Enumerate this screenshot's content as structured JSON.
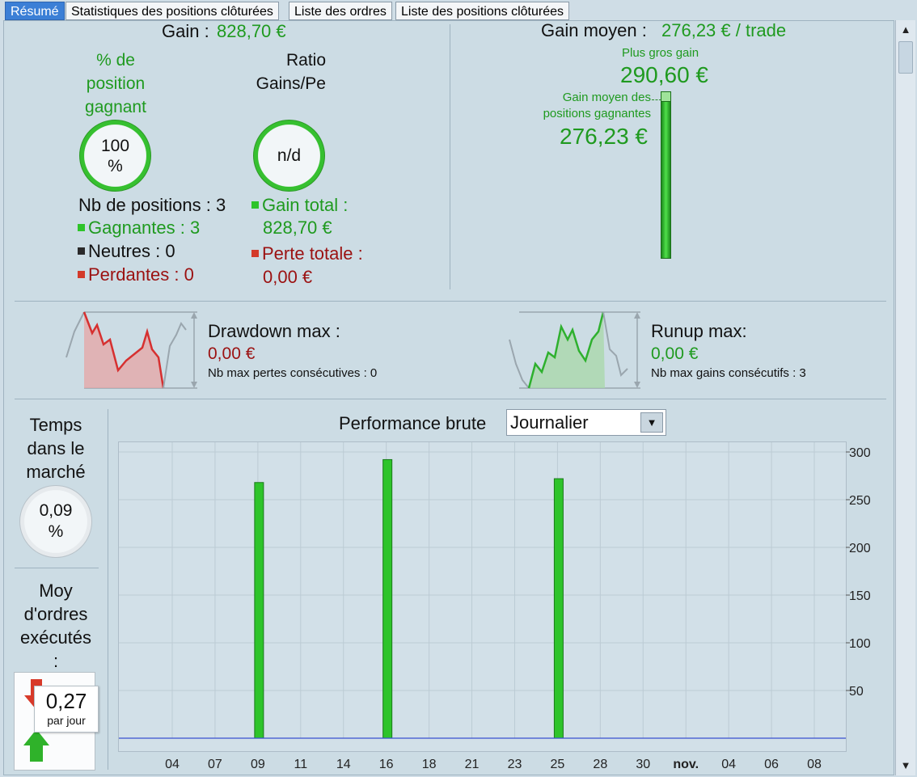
{
  "tabs": [
    {
      "label": "Résumé",
      "active": true
    },
    {
      "label": "Statistiques des positions clôturées",
      "active": false
    },
    {
      "label": "Liste des ordres",
      "active": false
    },
    {
      "label": "Liste des positions clôturées",
      "active": false
    }
  ],
  "gain": {
    "label": "Gain :",
    "value": "828,70 €"
  },
  "win_pct": {
    "title_lines": [
      "% de",
      "position",
      "gagnant"
    ],
    "value_lines": [
      "100",
      "%"
    ]
  },
  "ratio": {
    "title_lines": [
      "Ratio",
      "Gains/Pe"
    ],
    "value": "n/d"
  },
  "positions": {
    "count_label": "Nb de positions : 3",
    "winners": "Gagnantes : 3",
    "neutral": "Neutres : 0",
    "losers": "Perdantes : 0"
  },
  "totals": {
    "gain_label": "Gain total :",
    "gain_value": "828,70 €",
    "loss_label": "Perte totale :",
    "loss_value": "0,00 €"
  },
  "gain_moyen": {
    "label": "Gain moyen :",
    "value": "276,23 € / trade",
    "biggest_label": "Plus gros gain",
    "biggest_value": "290,60 €",
    "avg_win_label_lines": [
      "Gain moyen des",
      "positions gagnantes"
    ],
    "avg_win_value": "276,23 €"
  },
  "drawdown": {
    "title": "Drawdown max :",
    "value": "0,00 €",
    "sub": "Nb max pertes consécutives : 0"
  },
  "runup": {
    "title": "Runup max:",
    "value": "0,00 €",
    "sub": "Nb max gains consécutifs : 3"
  },
  "time_in_market": {
    "title_lines": [
      "Temps",
      "dans le",
      "marché"
    ],
    "value_lines": [
      "0,09",
      "%"
    ]
  },
  "avg_orders": {
    "title_lines": [
      "Moy",
      "d'ordres",
      "exécutés",
      ":"
    ],
    "value": "0,27",
    "unit": "par jour"
  },
  "performance": {
    "title": "Performance brute",
    "period": "Journalier"
  },
  "colors": {
    "green": "#1f9a1f",
    "red": "#9b1111",
    "tab_active": "#3b7fd6",
    "bar": "#2ec42a",
    "baseline": "#3a4fd0"
  },
  "chart_data": {
    "type": "bar",
    "x": [
      "04",
      "07",
      "09",
      "11",
      "14",
      "16",
      "18",
      "21",
      "23",
      "25",
      "28",
      "30",
      "nov.",
      "04",
      "06",
      "08"
    ],
    "series": [
      {
        "points": [
          {
            "x": "09",
            "y": 268
          },
          {
            "x": "16",
            "y": 292
          },
          {
            "x": "25",
            "y": 272
          }
        ]
      }
    ],
    "yticks": [
      50,
      100,
      150,
      200,
      250,
      300
    ],
    "ylim": [
      0,
      300
    ],
    "grid": true,
    "y_axis_side": "right"
  }
}
